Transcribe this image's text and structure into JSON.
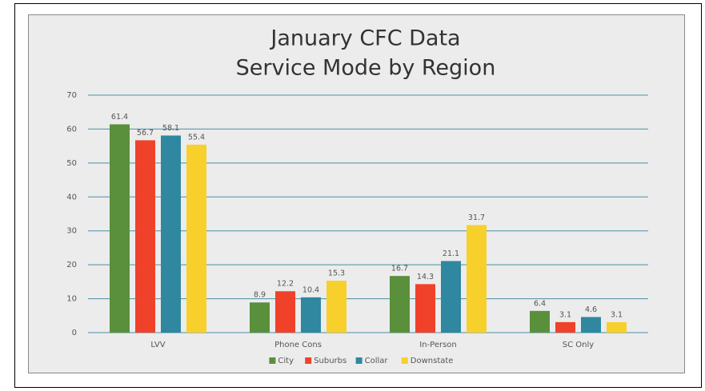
{
  "chart_data": {
    "type": "bar",
    "title": "January CFC Data",
    "subtitle": "Service Mode by Region",
    "categories": [
      "LVV",
      "Phone Cons",
      "In-Person",
      "SC Only"
    ],
    "series": [
      {
        "name": "City",
        "color": "#5a8f3c",
        "values": [
          61.4,
          8.9,
          16.7,
          6.4
        ]
      },
      {
        "name": "Suburbs",
        "color": "#f0412a",
        "values": [
          56.7,
          12.2,
          14.3,
          3.1
        ]
      },
      {
        "name": "Collar",
        "color": "#2f87a0",
        "values": [
          58.1,
          10.4,
          21.1,
          4.6
        ]
      },
      {
        "name": "Downstate",
        "color": "#f8d02c",
        "values": [
          55.4,
          15.3,
          31.7,
          3.1
        ]
      }
    ],
    "ylim": [
      0,
      70
    ],
    "yticks": [
      0,
      10,
      20,
      30,
      40,
      50,
      60,
      70
    ],
    "grid": true,
    "legend": "bottom"
  }
}
